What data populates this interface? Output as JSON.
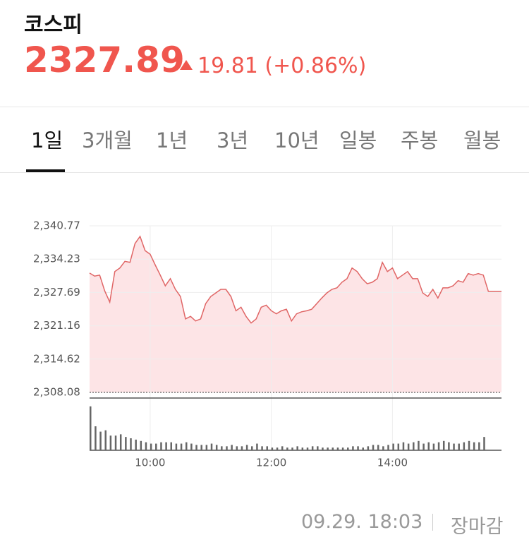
{
  "header": {
    "name": "코스피",
    "price": "2327.89",
    "change": "19.81 (+0.86%)"
  },
  "tabs": [
    "1일",
    "3개월",
    "1년",
    "3년",
    "10년",
    "일봉",
    "주봉",
    "월봉"
  ],
  "footer": {
    "time": "09.29. 18:03",
    "status": "장마감"
  },
  "chart_data": {
    "type": "line",
    "color": "#e06666",
    "fill_color": "#fde4e6",
    "grid": true,
    "x": [
      540,
      545,
      550,
      555,
      560,
      565,
      570,
      575,
      580,
      585,
      590,
      595,
      600,
      605,
      610,
      615,
      620,
      625,
      630,
      635,
      640,
      645,
      650,
      655,
      660,
      665,
      670,
      675,
      680,
      685,
      690,
      695,
      700,
      705,
      710,
      715,
      720,
      725,
      730,
      735,
      740,
      745,
      750,
      755,
      760,
      765,
      770,
      775,
      780,
      785,
      790,
      795,
      800,
      805,
      810,
      815,
      820,
      825,
      830,
      835,
      840,
      845,
      850,
      855,
      860,
      865,
      870,
      875,
      880,
      885,
      890,
      895,
      900,
      905,
      910,
      915,
      920,
      925,
      930,
      935,
      940,
      945,
      948
    ],
    "values": [
      2331.5,
      2330.9,
      2331.1,
      2328.0,
      2325.8,
      2331.8,
      2332.5,
      2333.8,
      2333.6,
      2337.3,
      2338.7,
      2335.9,
      2335.2,
      2333.1,
      2331.1,
      2329.0,
      2330.4,
      2328.3,
      2326.9,
      2322.5,
      2323.0,
      2322.1,
      2322.5,
      2325.5,
      2326.9,
      2327.6,
      2328.3,
      2328.3,
      2326.9,
      2324.1,
      2324.8,
      2323.0,
      2321.7,
      2322.5,
      2324.8,
      2325.2,
      2324.1,
      2323.5,
      2324.1,
      2324.4,
      2322.1,
      2323.5,
      2323.9,
      2324.1,
      2324.4,
      2325.5,
      2326.6,
      2327.6,
      2328.3,
      2328.6,
      2329.7,
      2330.4,
      2332.5,
      2331.8,
      2330.4,
      2329.4,
      2329.7,
      2330.4,
      2333.6,
      2331.8,
      2332.5,
      2330.4,
      2331.1,
      2331.8,
      2330.4,
      2330.4,
      2327.6,
      2326.9,
      2328.3,
      2326.6,
      2328.6,
      2328.6,
      2329.0,
      2330.0,
      2329.7,
      2331.4,
      2331.1,
      2331.4,
      2331.1,
      2327.9,
      2327.9,
      2327.9,
      2327.9
    ],
    "volume": {
      "color": "#666666",
      "vlim": [
        0,
        70
      ],
      "values": [
        66,
        36,
        28,
        30,
        22,
        22,
        24,
        20,
        18,
        16,
        14,
        12,
        10,
        10,
        12,
        12,
        12,
        10,
        10,
        12,
        10,
        8,
        8,
        8,
        10,
        8,
        6,
        6,
        8,
        6,
        6,
        8,
        6,
        10,
        6,
        6,
        4,
        4,
        6,
        4,
        4,
        6,
        4,
        4,
        6,
        6,
        4,
        4,
        4,
        4,
        4,
        4,
        6,
        6,
        4,
        6,
        8,
        8,
        6,
        8,
        10,
        10,
        12,
        10,
        12,
        14,
        10,
        12,
        10,
        12,
        14,
        12,
        10,
        10,
        12,
        14,
        12,
        12,
        20,
        null,
        null,
        null,
        null
      ]
    },
    "xlim": [
      540,
      948
    ],
    "xticks": [
      {
        "value": 600,
        "label": "10:00"
      },
      {
        "value": 720,
        "label": "12:00"
      },
      {
        "value": 840,
        "label": "14:00"
      }
    ],
    "ylim": [
      2308.08,
      2340.77
    ],
    "yticks": [
      {
        "value": 2308.08,
        "label": "2,308.08"
      },
      {
        "value": 2314.62,
        "label": "2,314.62"
      },
      {
        "value": 2321.16,
        "label": "2,321.16"
      },
      {
        "value": 2327.69,
        "label": "2,327.69"
      },
      {
        "value": 2334.23,
        "label": "2,334.23"
      },
      {
        "value": 2340.77,
        "label": "2,340.77"
      }
    ]
  }
}
